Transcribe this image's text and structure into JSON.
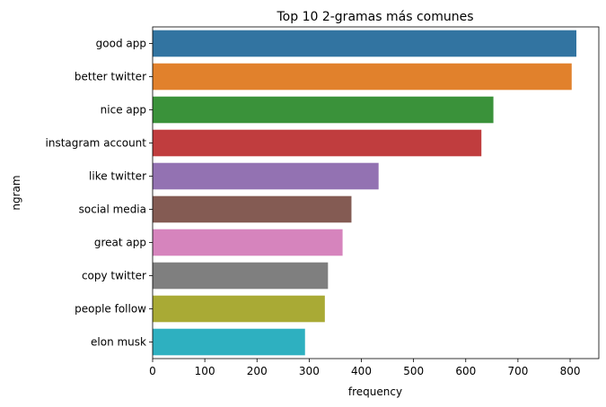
{
  "chart_data": {
    "type": "bar",
    "orientation": "horizontal",
    "title": "Top 10 2-gramas más comunes",
    "xlabel": "frequency",
    "ylabel": "ngram",
    "xlim": [
      0,
      855
    ],
    "xticks": [
      0,
      100,
      200,
      300,
      400,
      500,
      600,
      700,
      800
    ],
    "grid": false,
    "categories": [
      "good app",
      "better twitter",
      "nice app",
      "instagram account",
      "like twitter",
      "social media",
      "great app",
      "copy twitter",
      "people follow",
      "elon musk"
    ],
    "values": [
      812,
      803,
      653,
      630,
      433,
      381,
      364,
      336,
      330,
      292
    ],
    "colors": [
      "#3274a1",
      "#e1812c",
      "#3a923a",
      "#c03d3e",
      "#9372b2",
      "#845b53",
      "#d684bd",
      "#7f7f7f",
      "#a9aa35",
      "#2eb0c0"
    ]
  }
}
